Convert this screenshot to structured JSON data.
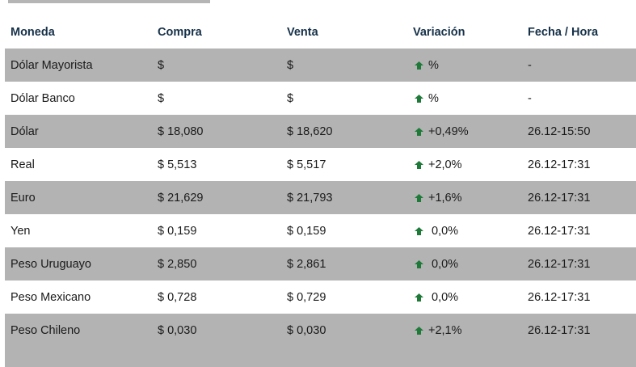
{
  "headers": {
    "moneda": "Moneda",
    "compra": "Compra",
    "venta": "Venta",
    "variacion": "Variación",
    "fecha": "Fecha / Hora"
  },
  "colors": {
    "header_text": "#163149",
    "row_alt_bg": "#b3b3b3",
    "arrow": "#1f7a3a"
  },
  "rows": [
    {
      "moneda": "Dólar Mayorista",
      "compra": "$",
      "venta": "$",
      "variacion": "%",
      "fecha": "-",
      "icon": "up-arrow-icon"
    },
    {
      "moneda": "Dólar Banco",
      "compra": "$",
      "venta": "$",
      "variacion": "%",
      "fecha": "-",
      "icon": "up-arrow-icon"
    },
    {
      "moneda": "Dólar",
      "compra": "$ 18,080",
      "venta": "$ 18,620",
      "variacion": "+0,49%",
      "fecha": "26.12-15:50",
      "icon": "up-arrow-icon"
    },
    {
      "moneda": "Real",
      "compra": "$ 5,513",
      "venta": "$ 5,517",
      "variacion": "+2,0%",
      "fecha": "26.12-17:31",
      "icon": "up-arrow-icon"
    },
    {
      "moneda": "Euro",
      "compra": "$ 21,629",
      "venta": "$ 21,793",
      "variacion": "+1,6%",
      "fecha": "26.12-17:31",
      "icon": "up-arrow-icon"
    },
    {
      "moneda": "Yen",
      "compra": "$ 0,159",
      "venta": "$ 0,159",
      "variacion": " 0,0%",
      "fecha": "26.12-17:31",
      "icon": "up-arrow-icon"
    },
    {
      "moneda": "Peso Uruguayo",
      "compra": "$ 2,850",
      "venta": "$ 2,861",
      "variacion": " 0,0%",
      "fecha": "26.12-17:31",
      "icon": "up-arrow-icon"
    },
    {
      "moneda": "Peso Mexicano",
      "compra": "$ 0,728",
      "venta": "$ 0,729",
      "variacion": " 0,0%",
      "fecha": "26.12-17:31",
      "icon": "up-arrow-icon"
    },
    {
      "moneda": "Peso Chileno",
      "compra": "$ 0,030",
      "venta": "$ 0,030",
      "variacion": "+2,1%",
      "fecha": "26.12-17:31",
      "icon": "up-arrow-icon"
    }
  ]
}
